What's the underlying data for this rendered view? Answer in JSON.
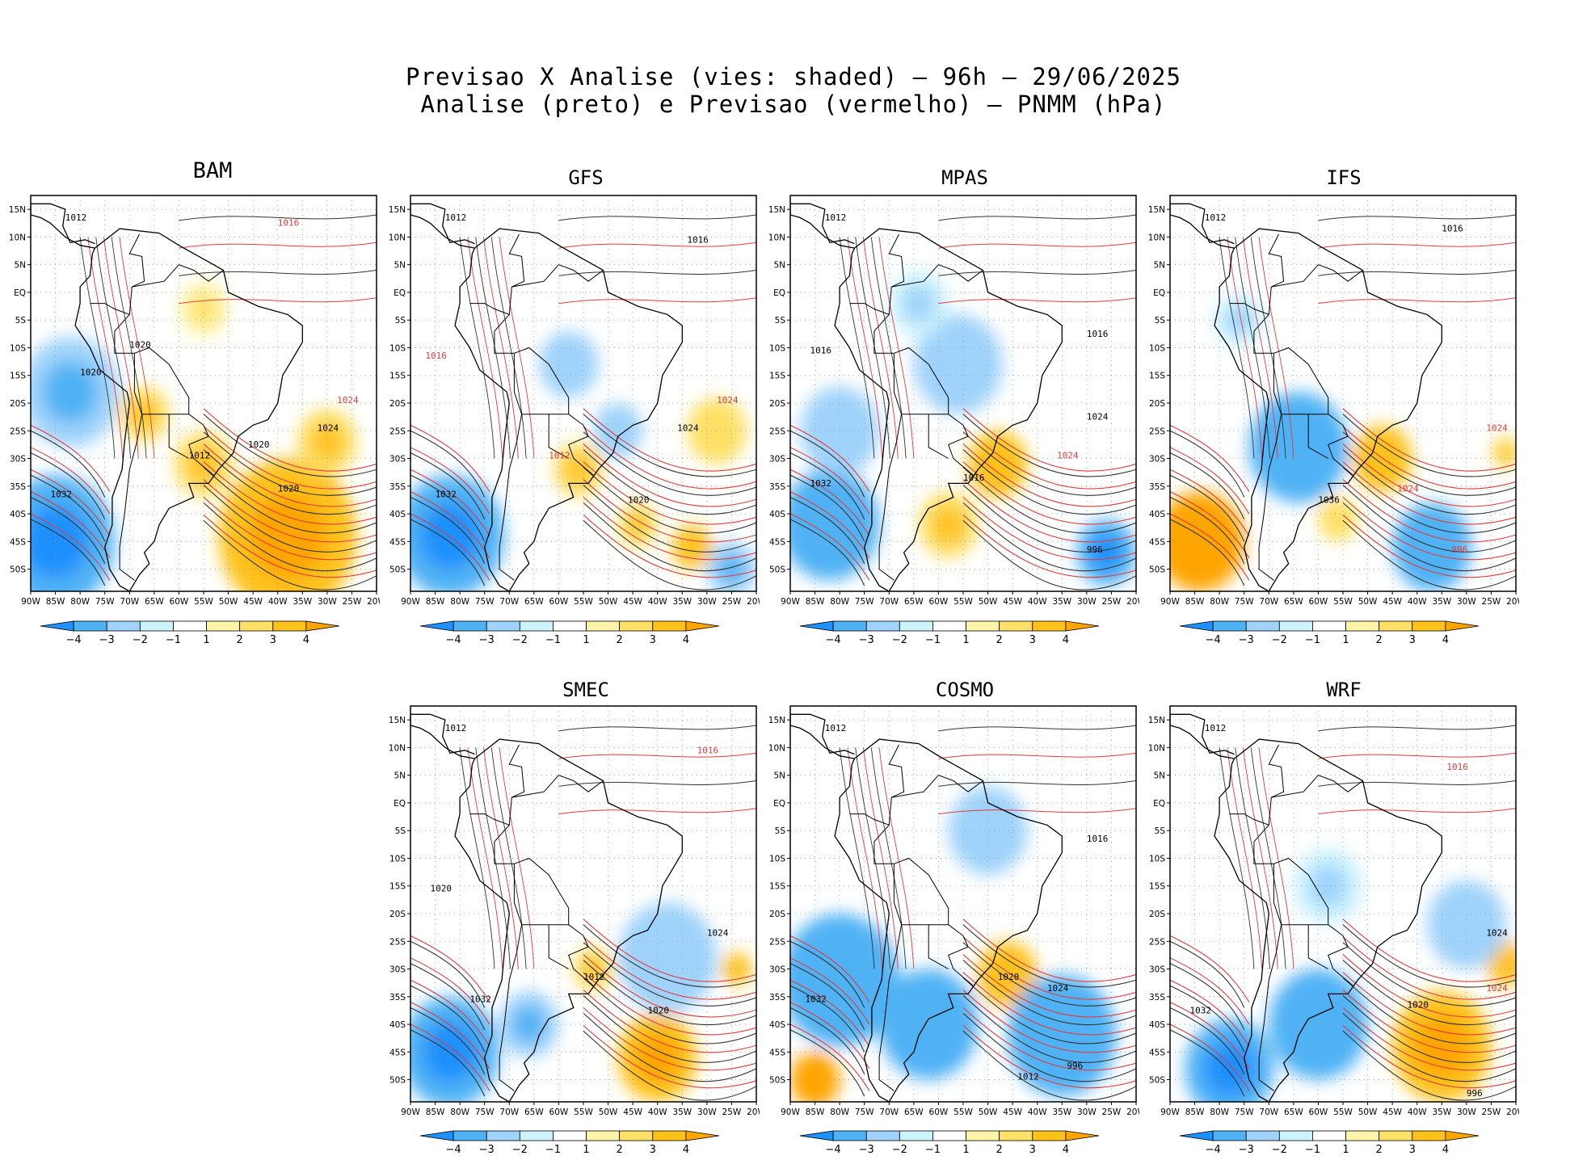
{
  "header": {
    "title_line1": "Previsao X Analise (vies: shaded) — 96h — 29/06/2025",
    "title_line2": "Analise (preto) e Previsao (vermelho) — PNMM (hPa)"
  },
  "axes": {
    "lat_labels": [
      "15N",
      "10N",
      "5N",
      "EQ",
      "5S",
      "10S",
      "15S",
      "20S",
      "25S",
      "30S",
      "35S",
      "40S",
      "45S",
      "50S"
    ],
    "lon_labels": [
      "90W",
      "85W",
      "80W",
      "75W",
      "70W",
      "65W",
      "60W",
      "55W",
      "50W",
      "45W",
      "40W",
      "35W",
      "30W",
      "25W",
      "20W"
    ],
    "lat_range": [
      -54,
      17.5
    ],
    "lon_range": [
      -90,
      -20
    ]
  },
  "colorbar": {
    "ticks": [
      "−4",
      "−3",
      "−2",
      "−1",
      "1",
      "2",
      "3",
      "4"
    ],
    "colors": [
      "#1e90ff",
      "#4fb2f5",
      "#9fd3fb",
      "#cdf3ff",
      "#ffffff",
      "#fff4a8",
      "#ffe066",
      "#ffc21a",
      "#ffa500"
    ]
  },
  "panels": [
    {
      "id": "BAM",
      "title": "BAM",
      "blobs": [
        {
          "lon": -38,
          "lat": -44,
          "r": 14,
          "v": 3.5
        },
        {
          "lon": -55,
          "lat": -31,
          "r": 6,
          "v": 2.5
        },
        {
          "lon": -67,
          "lat": -22,
          "r": 5,
          "v": 2.5
        },
        {
          "lon": -55,
          "lat": -3,
          "r": 5,
          "v": 1.5
        },
        {
          "lon": -82,
          "lat": -18,
          "r": 10,
          "v": -2.5
        },
        {
          "lon": -85,
          "lat": -45,
          "r": 12,
          "v": -3.5
        },
        {
          "lon": -30,
          "lat": -27,
          "r": 6,
          "v": 2.5
        }
      ],
      "labels": [
        {
          "lon": -83,
          "lat": 13,
          "t": "1012",
          "c": "k"
        },
        {
          "lon": -70,
          "lat": -10,
          "t": "1020",
          "c": "k"
        },
        {
          "lon": -86,
          "lat": -37,
          "t": "1032",
          "c": "k"
        },
        {
          "lon": -40,
          "lat": -36,
          "t": "1020",
          "c": "k"
        },
        {
          "lon": -46,
          "lat": -28,
          "t": "1020",
          "c": "k"
        },
        {
          "lon": -32,
          "lat": -25,
          "t": "1024",
          "c": "k"
        },
        {
          "lon": -40,
          "lat": 12,
          "t": "1016",
          "c": "r"
        },
        {
          "lon": -28,
          "lat": -20,
          "t": "1024",
          "c": "r"
        },
        {
          "lon": -58,
          "lat": -30,
          "t": "1012",
          "c": "k"
        },
        {
          "lon": -80,
          "lat": -15,
          "t": "1020",
          "c": "k"
        }
      ]
    },
    {
      "id": "GFS",
      "title": "GFS",
      "blobs": [
        {
          "lon": -56,
          "lat": -32,
          "r": 5,
          "v": 2.5
        },
        {
          "lon": -28,
          "lat": -25,
          "r": 6,
          "v": 2
        },
        {
          "lon": -44,
          "lat": -42,
          "r": 4,
          "v": 2.5
        },
        {
          "lon": -33,
          "lat": -46,
          "r": 4,
          "v": 3
        },
        {
          "lon": -58,
          "lat": -13,
          "r": 6,
          "v": -2
        },
        {
          "lon": -82,
          "lat": -44,
          "r": 11,
          "v": -3.5
        },
        {
          "lon": -25,
          "lat": -50,
          "r": 5,
          "v": -2.5
        },
        {
          "lon": -48,
          "lat": -25,
          "r": 5,
          "v": -2
        }
      ],
      "labels": [
        {
          "lon": -83,
          "lat": 13,
          "t": "1012",
          "c": "k"
        },
        {
          "lon": -85,
          "lat": -37,
          "t": "1032",
          "c": "k"
        },
        {
          "lon": -46,
          "lat": -38,
          "t": "1020",
          "c": "k"
        },
        {
          "lon": -36,
          "lat": -25,
          "t": "1024",
          "c": "k"
        },
        {
          "lon": -28,
          "lat": -20,
          "t": "1024",
          "c": "r"
        },
        {
          "lon": -62,
          "lat": -30,
          "t": "1012",
          "c": "r"
        },
        {
          "lon": -87,
          "lat": -12,
          "t": "1016",
          "c": "r"
        },
        {
          "lon": -34,
          "lat": 9,
          "t": "1016",
          "c": "k"
        }
      ]
    },
    {
      "id": "MPAS",
      "title": "MPAS",
      "blobs": [
        {
          "lon": -48,
          "lat": -31,
          "r": 6,
          "v": 3
        },
        {
          "lon": -58,
          "lat": -42,
          "r": 6,
          "v": 2.5
        },
        {
          "lon": -56,
          "lat": -13,
          "r": 9,
          "v": -2
        },
        {
          "lon": -64,
          "lat": -2,
          "r": 6,
          "v": -1.5
        },
        {
          "lon": -82,
          "lat": -42,
          "r": 10,
          "v": -3
        },
        {
          "lon": -26,
          "lat": -47,
          "r": 6,
          "v": -3.5
        },
        {
          "lon": -80,
          "lat": -25,
          "r": 8,
          "v": -2
        }
      ],
      "labels": [
        {
          "lon": -83,
          "lat": 13,
          "t": "1012",
          "c": "k"
        },
        {
          "lon": -86,
          "lat": -35,
          "t": "1032",
          "c": "k"
        },
        {
          "lon": -36,
          "lat": -30,
          "t": "1024",
          "c": "r"
        },
        {
          "lon": -30,
          "lat": -23,
          "t": "1024",
          "c": "k"
        },
        {
          "lon": -30,
          "lat": -47,
          "t": "996",
          "c": "k"
        },
        {
          "lon": -55,
          "lat": -34,
          "t": "1016",
          "c": "k"
        },
        {
          "lon": -86,
          "lat": -11,
          "t": "1016",
          "c": "k"
        },
        {
          "lon": -30,
          "lat": -8,
          "t": "1016",
          "c": "k"
        }
      ]
    },
    {
      "id": "IFS",
      "title": "IFS",
      "blobs": [
        {
          "lon": -84,
          "lat": -45,
          "r": 9,
          "v": 4
        },
        {
          "lon": -56,
          "lat": -41,
          "r": 4,
          "v": 2
        },
        {
          "lon": -47,
          "lat": -30,
          "r": 6,
          "v": 3
        },
        {
          "lon": -64,
          "lat": -28,
          "r": 10,
          "v": -3
        },
        {
          "lon": -37,
          "lat": -46,
          "r": 8,
          "v": -3
        },
        {
          "lon": -76,
          "lat": -5,
          "r": 5,
          "v": -1.5
        },
        {
          "lon": -22,
          "lat": -29,
          "r": 3,
          "v": 2.5
        }
      ],
      "labels": [
        {
          "lon": -83,
          "lat": 13,
          "t": "1012",
          "c": "k"
        },
        {
          "lon": -60,
          "lat": -38,
          "t": "1036",
          "c": "k"
        },
        {
          "lon": -44,
          "lat": -36,
          "t": "1024",
          "c": "r"
        },
        {
          "lon": -33,
          "lat": -47,
          "t": "996",
          "c": "r"
        },
        {
          "lon": -26,
          "lat": -25,
          "t": "1024",
          "c": "r"
        },
        {
          "lon": -35,
          "lat": 11,
          "t": "1016",
          "c": "k"
        }
      ]
    },
    {
      "id": "SMEC",
      "title": "SMEC",
      "blobs": [
        {
          "lon": -40,
          "lat": -46,
          "r": 8,
          "v": 3.5
        },
        {
          "lon": -53,
          "lat": -30,
          "r": 4,
          "v": 2.5
        },
        {
          "lon": -82,
          "lat": -45,
          "r": 10,
          "v": -3.5
        },
        {
          "lon": -38,
          "lat": -28,
          "r": 10,
          "v": -2
        },
        {
          "lon": -66,
          "lat": -40,
          "r": 6,
          "v": -2.5
        },
        {
          "lon": -24,
          "lat": -30,
          "r": 3,
          "v": 3
        }
      ],
      "labels": [
        {
          "lon": -83,
          "lat": 13,
          "t": "1012",
          "c": "k"
        },
        {
          "lon": -78,
          "lat": -36,
          "t": "1032",
          "c": "k"
        },
        {
          "lon": -42,
          "lat": -38,
          "t": "1020",
          "c": "k"
        },
        {
          "lon": -30,
          "lat": -24,
          "t": "1024",
          "c": "k"
        },
        {
          "lon": -55,
          "lat": -32,
          "t": "1012",
          "c": "k"
        },
        {
          "lon": -32,
          "lat": 9,
          "t": "1016",
          "c": "r"
        },
        {
          "lon": -86,
          "lat": -16,
          "t": "1020",
          "c": "k"
        }
      ]
    },
    {
      "id": "COSMO",
      "title": "COSMO",
      "blobs": [
        {
          "lon": -85,
          "lat": -50,
          "r": 5,
          "v": 4
        },
        {
          "lon": -46,
          "lat": -31,
          "r": 6,
          "v": 3
        },
        {
          "lon": -80,
          "lat": -32,
          "r": 12,
          "v": -3
        },
        {
          "lon": -62,
          "lat": -40,
          "r": 10,
          "v": -3
        },
        {
          "lon": -35,
          "lat": -42,
          "r": 11,
          "v": -3
        },
        {
          "lon": -50,
          "lat": -5,
          "r": 8,
          "v": -2
        }
      ],
      "labels": [
        {
          "lon": -83,
          "lat": 13,
          "t": "1012",
          "c": "k"
        },
        {
          "lon": -87,
          "lat": -36,
          "t": "1032",
          "c": "k"
        },
        {
          "lon": -34,
          "lat": -48,
          "t": "996",
          "c": "k"
        },
        {
          "lon": -44,
          "lat": -50,
          "t": "1012",
          "c": "k"
        },
        {
          "lon": -38,
          "lat": -34,
          "t": "1024",
          "c": "k"
        },
        {
          "lon": -30,
          "lat": -7,
          "t": "1016",
          "c": "k"
        },
        {
          "lon": -48,
          "lat": -32,
          "t": "1020",
          "c": "k"
        }
      ]
    },
    {
      "id": "WRF",
      "title": "WRF",
      "blobs": [
        {
          "lon": -35,
          "lat": -44,
          "r": 10,
          "v": 3.5
        },
        {
          "lon": -22,
          "lat": -29,
          "r": 4,
          "v": 3
        },
        {
          "lon": -60,
          "lat": -40,
          "r": 10,
          "v": -3
        },
        {
          "lon": -78,
          "lat": -48,
          "r": 9,
          "v": -3.5
        },
        {
          "lon": -30,
          "lat": -22,
          "r": 8,
          "v": -2
        },
        {
          "lon": -58,
          "lat": -15,
          "r": 7,
          "v": -1.5
        }
      ],
      "labels": [
        {
          "lon": -83,
          "lat": 13,
          "t": "1012",
          "c": "k"
        },
        {
          "lon": -86,
          "lat": -38,
          "t": "1032",
          "c": "k"
        },
        {
          "lon": -42,
          "lat": -37,
          "t": "1020",
          "c": "k"
        },
        {
          "lon": -26,
          "lat": -24,
          "t": "1024",
          "c": "k"
        },
        {
          "lon": -26,
          "lat": -34,
          "t": "1024",
          "c": "r"
        },
        {
          "lon": -30,
          "lat": -53,
          "t": "996",
          "c": "k"
        },
        {
          "lon": -34,
          "lat": 6,
          "t": "1016",
          "c": "r"
        }
      ]
    }
  ]
}
